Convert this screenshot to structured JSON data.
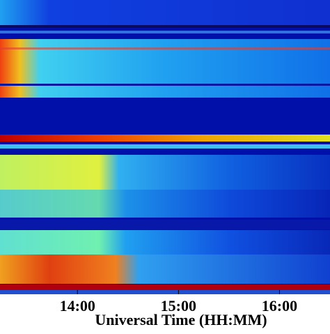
{
  "chart_data": {
    "type": "spectrogram",
    "xlabel": "Universal Time (HH:MM)",
    "xlim": [
      794,
      990
    ],
    "xticks": [
      {
        "value": 840,
        "label": "14:00"
      },
      {
        "value": 900,
        "label": "15:00"
      },
      {
        "value": 960,
        "label": "16:00"
      }
    ]
  }
}
